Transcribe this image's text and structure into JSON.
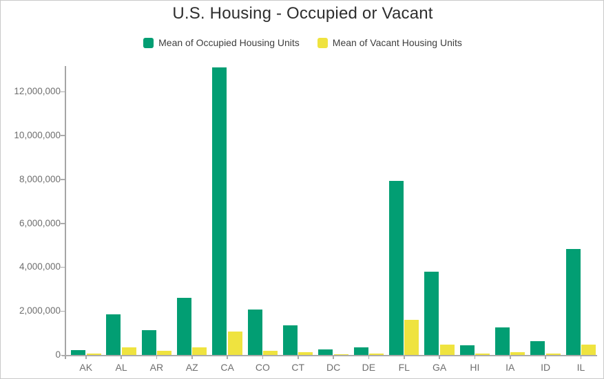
{
  "title": "U.S. Housing - Occupied or Vacant",
  "legend": {
    "items": [
      {
        "label": "Mean of Occupied Housing Units",
        "color": "#029e73"
      },
      {
        "label": "Mean of Vacant Housing Units",
        "color": "#efe33f"
      }
    ]
  },
  "colors": {
    "occupied_green": "#029e73",
    "vacant_yellow": "#efe33f",
    "axis_line": "#ababab",
    "axis_label": "#6e6e6e",
    "title_text": "#2e2e2e",
    "frame_border": "#c9c9c9"
  },
  "chart_data": {
    "type": "bar",
    "title": "U.S. Housing - Occupied or Vacant",
    "categories": [
      "AK",
      "AL",
      "AR",
      "AZ",
      "CA",
      "CO",
      "CT",
      "DC",
      "DE",
      "FL",
      "GA",
      "HI",
      "IA",
      "ID",
      "IL"
    ],
    "series": [
      {
        "name": "Mean of Occupied Housing Units",
        "color": "#029e73",
        "values": [
          230000,
          1850000,
          1130000,
          2600000,
          13100000,
          2080000,
          1350000,
          250000,
          340000,
          7930000,
          3800000,
          440000,
          1250000,
          620000,
          4840000
        ]
      },
      {
        "name": "Mean of Vacant Housing Units",
        "color": "#efe33f",
        "values": [
          60000,
          340000,
          180000,
          360000,
          1070000,
          190000,
          110000,
          30000,
          50000,
          1600000,
          470000,
          70000,
          120000,
          70000,
          470000
        ]
      }
    ],
    "xlabel": "",
    "ylabel": "",
    "ylim": [
      0,
      13160000
    ],
    "yticks": [
      0,
      2000000,
      4000000,
      6000000,
      8000000,
      10000000,
      12000000
    ],
    "ytick_labels": [
      "0",
      "2,000,000",
      "4,000,000",
      "6,000,000",
      "8,000,000",
      "10,000,000",
      "12,000,000"
    ],
    "grid": false,
    "legend_position": "top"
  }
}
